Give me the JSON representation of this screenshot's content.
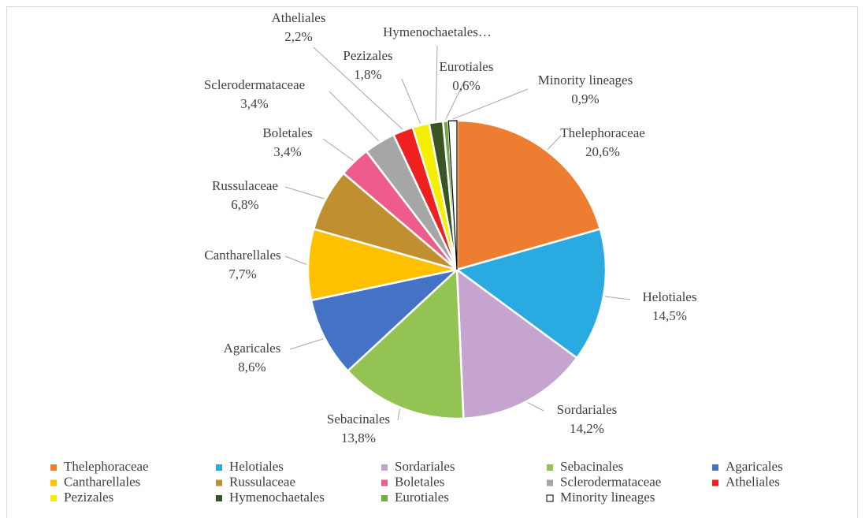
{
  "chart_data": {
    "type": "pie",
    "categories": [
      "Thelephoraceae",
      "Helotiales",
      "Sordariales",
      "Sebacinales",
      "Agaricales",
      "Cantharellales",
      "Russulaceae",
      "Boletales",
      "Sclerodermataceae",
      "Atheliales",
      "Pezizales",
      "Hymenochaetales",
      "Eurotiales",
      "Minority lineages"
    ],
    "values": [
      20.6,
      14.5,
      14.2,
      13.8,
      8.6,
      7.7,
      6.8,
      3.4,
      3.4,
      2.2,
      1.8,
      1.5,
      0.6,
      0.9
    ],
    "value_labels": [
      "20,6%",
      "14,5%",
      "14,2%",
      "13,8%",
      "8,6%",
      "7,7%",
      "6,8%",
      "3,4%",
      "3,4%",
      "2,2%",
      "1,8%",
      null,
      "0,6%",
      "0,9%"
    ],
    "slice_labels": [
      "Thelephoraceae",
      "Helotiales",
      "Sordariales",
      "Sebacinales",
      "Agaricales",
      "Cantharellales",
      "Russulaceae",
      "Boletales",
      "Sclerodermataceae",
      "Atheliales",
      "Pezizales",
      "Hymenochaetales…",
      "Eurotiales",
      "Minority lineages"
    ],
    "colors": [
      "#ed7d31",
      "#29abe2",
      "#c5a5cf",
      "#92c353",
      "#4472c4",
      "#ffc000",
      "#bf8f30",
      "#ee5c8e",
      "#a6a6a6",
      "#ee2020",
      "#f5ee00",
      "#375623",
      "#70ad47",
      "#ffffff"
    ],
    "legend": "bottom"
  }
}
